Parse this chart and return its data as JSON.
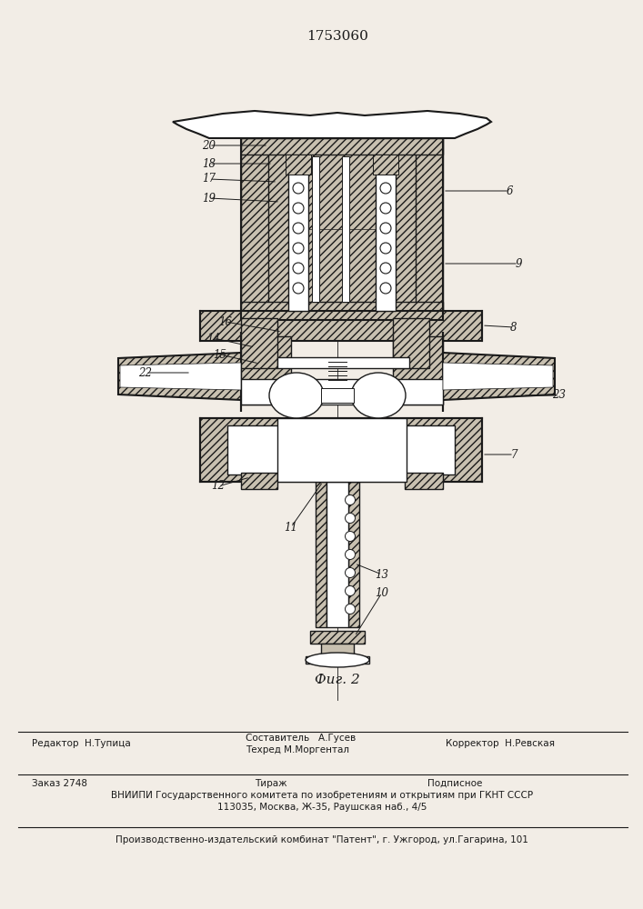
{
  "title": "1753060",
  "fig_label": "Фиг. 2",
  "bg_color": "#f0ece4",
  "line_color": "#222222",
  "footer": {
    "editor": "Редактор  Н.Тупица",
    "composer_line1": "Составитель   А.Гусев",
    "composer_line2": "Техред М.Моргентал",
    "corrector": "Корректор  Н.Ревская",
    "order": "Заказ 2748",
    "tirazh": "Тираж",
    "podpisnoe": "Подписное",
    "vniip1": "ВНИИПИ Государственного комитета по изобретениям и открытиям при ГКНТ СССР",
    "vniip2": "113035, Москва, Ж-35, Раушская наб., 4/5",
    "patent": "Производственно-издательский комбинат \"Патент\", г. Ужгород, ул.Гагарина, 101"
  }
}
